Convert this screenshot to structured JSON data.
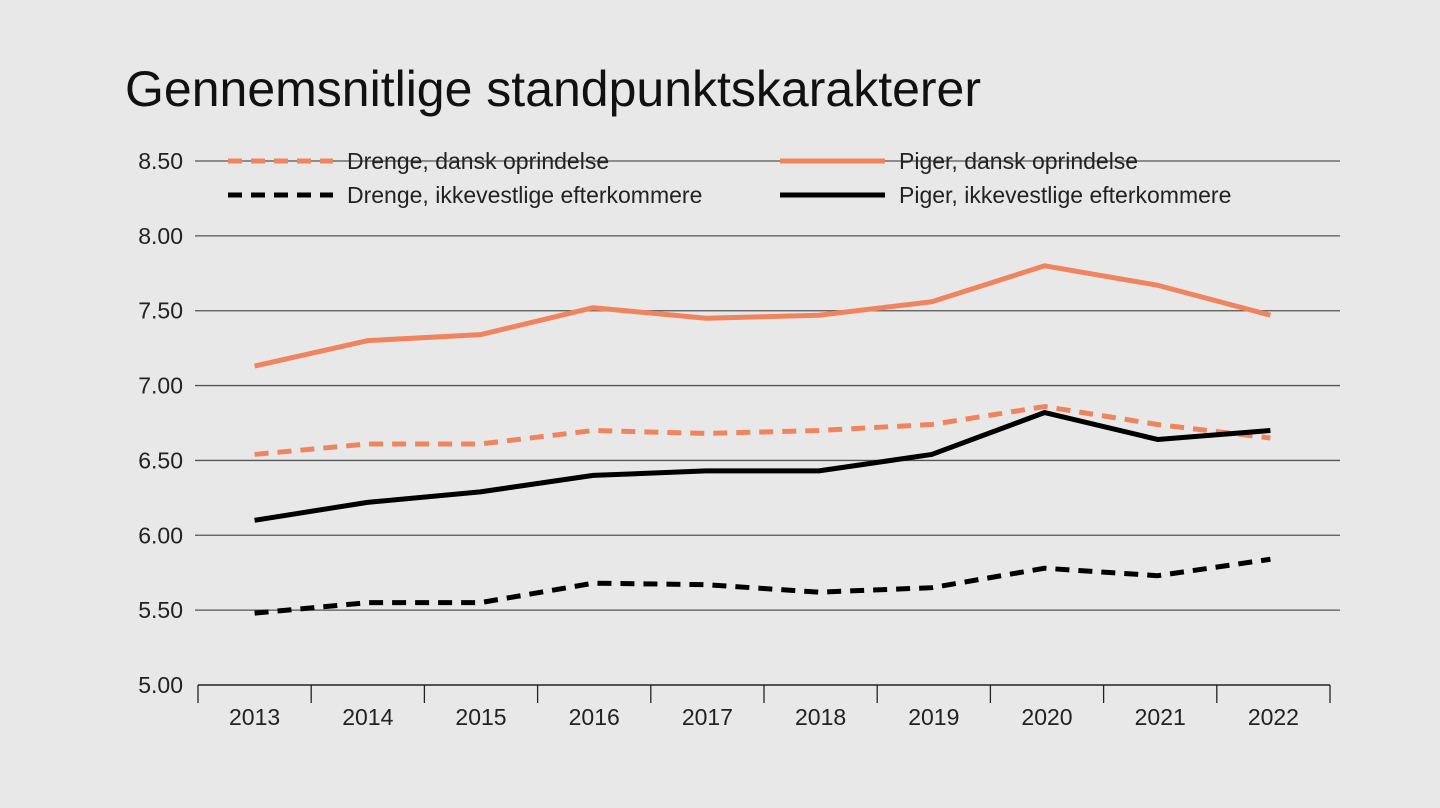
{
  "chart_data": {
    "type": "line",
    "title": "Gennemsnitlige standpunktskarakterer",
    "xlabel": "",
    "ylabel": "",
    "x": [
      "2013",
      "2014",
      "2015",
      "2016",
      "2017",
      "2018",
      "2019",
      "2020",
      "2021",
      "2022"
    ],
    "ylim": [
      5.0,
      8.5
    ],
    "yticks": [
      "5.00",
      "5.50",
      "6.00",
      "6.50",
      "7.00",
      "7.50",
      "8.00",
      "8.50"
    ],
    "grid": true,
    "legend_placement": "top",
    "series": [
      {
        "name": "Drenge, dansk oprindelse",
        "color": "#f0845f",
        "style": "dashed",
        "values": [
          6.54,
          6.61,
          6.61,
          6.7,
          6.68,
          6.7,
          6.74,
          6.86,
          6.74,
          6.65
        ]
      },
      {
        "name": "Piger, dansk oprindelse",
        "color": "#f0845f",
        "style": "solid",
        "values": [
          7.13,
          7.3,
          7.34,
          7.52,
          7.45,
          7.47,
          7.56,
          7.8,
          7.67,
          7.47
        ]
      },
      {
        "name": "Drenge, ikkevestlige efterkommere",
        "color": "#000000",
        "style": "dashed",
        "values": [
          5.48,
          5.55,
          5.55,
          5.68,
          5.67,
          5.62,
          5.65,
          5.78,
          5.73,
          5.84
        ]
      },
      {
        "name": "Piger, ikkevestlige efterkommere",
        "color": "#000000",
        "style": "solid",
        "values": [
          6.1,
          6.22,
          6.29,
          6.4,
          6.43,
          6.43,
          6.54,
          6.82,
          6.64,
          6.7
        ]
      }
    ]
  }
}
